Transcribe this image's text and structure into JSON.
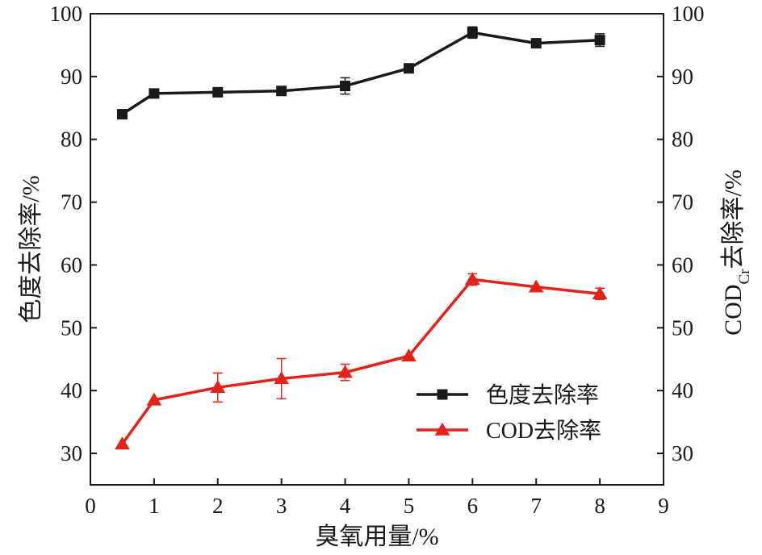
{
  "chart_data": {
    "type": "line",
    "xlabel": "臭氧用量/%",
    "ylabel_left": "色度去除率/%",
    "ylabel_right_main": "COD",
    "ylabel_right_sub": "Cr",
    "ylabel_right_rest": "去除率/%",
    "xlim": [
      0,
      9
    ],
    "ylim": [
      25,
      100
    ],
    "x_ticks": [
      0,
      1,
      2,
      3,
      4,
      5,
      6,
      7,
      8,
      9
    ],
    "y_ticks": [
      30,
      40,
      50,
      60,
      70,
      80,
      90,
      100
    ],
    "grid": false,
    "legend_position": "lower-right",
    "series": [
      {
        "name": "色度去除率",
        "color": "#1a1a1a",
        "marker": "square",
        "x": [
          0.5,
          1,
          2,
          3,
          4,
          5,
          6,
          7,
          8
        ],
        "y": [
          84.0,
          87.3,
          87.5,
          87.7,
          88.5,
          91.3,
          97.0,
          95.3,
          95.8
        ],
        "error": [
          0,
          0,
          0,
          0,
          1.3,
          0,
          0.9,
          0,
          1.0
        ]
      },
      {
        "name": "COD去除率",
        "color": "#e2231a",
        "marker": "triangle",
        "x": [
          0.5,
          1,
          2,
          3,
          4,
          5,
          6,
          7,
          8
        ],
        "y": [
          31.5,
          38.5,
          40.5,
          41.9,
          42.9,
          45.5,
          57.7,
          56.5,
          55.4
        ],
        "error": [
          0,
          0,
          2.3,
          3.2,
          1.3,
          0,
          0.9,
          0,
          0.9
        ]
      }
    ]
  }
}
